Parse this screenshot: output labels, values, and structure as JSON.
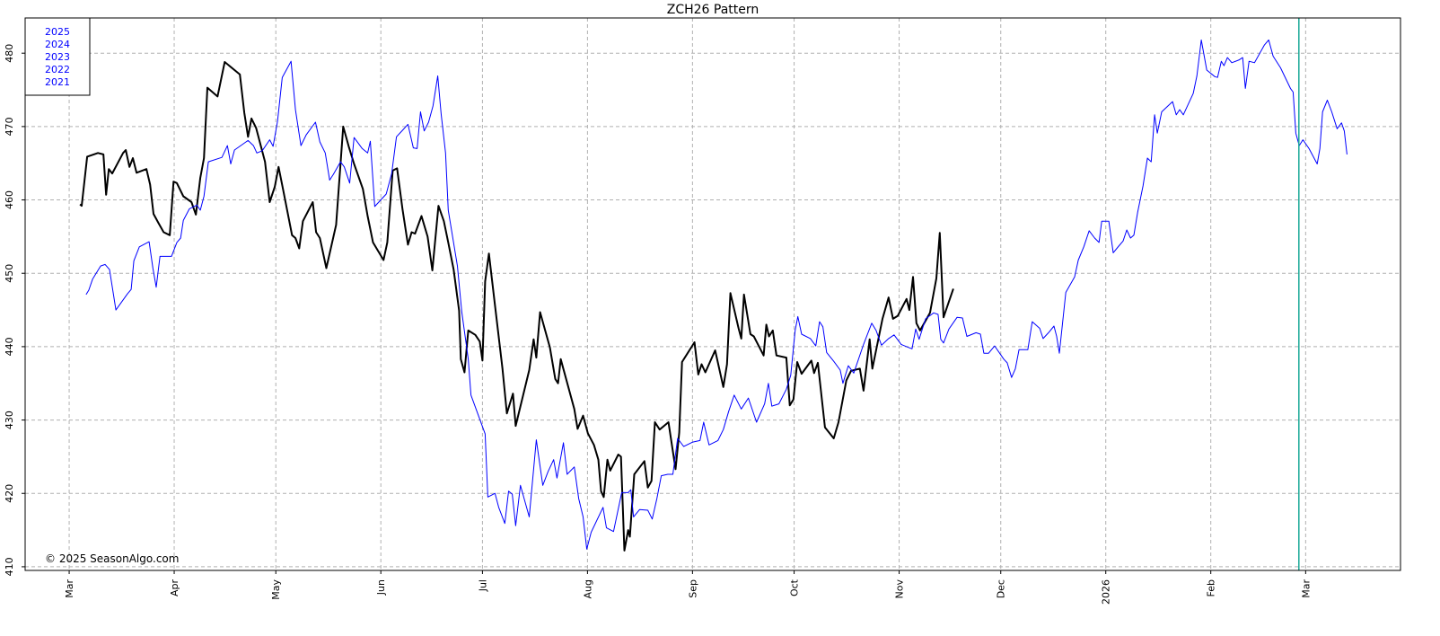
{
  "chart_data": {
    "type": "line",
    "title": "ZCH26  Pattern",
    "annotation": "© 2025 SeasonAlgo.com",
    "legend": {
      "entries": [
        "2025",
        "2024",
        "2023",
        "2022",
        "2021"
      ],
      "color": "#0000ff",
      "position": "upper-left"
    },
    "grid": true,
    "xlim": [
      -13,
      393
    ],
    "ylim": [
      409.5,
      484.8
    ],
    "xticks": [
      {
        "value": 0,
        "label": "Mar"
      },
      {
        "value": 31,
        "label": "Apr"
      },
      {
        "value": 61,
        "label": "May"
      },
      {
        "value": 92,
        "label": "Jun"
      },
      {
        "value": 122,
        "label": "Jul"
      },
      {
        "value": 153,
        "label": "Aug"
      },
      {
        "value": 184,
        "label": "Sep"
      },
      {
        "value": 214,
        "label": "Oct"
      },
      {
        "value": 245,
        "label": "Nov"
      },
      {
        "value": 275,
        "label": "Dec"
      },
      {
        "value": 306,
        "label": "2026"
      },
      {
        "value": 337,
        "label": "Feb"
      },
      {
        "value": 365,
        "label": "Mar"
      }
    ],
    "yticks": [
      410,
      420,
      430,
      440,
      450,
      460,
      470,
      480
    ],
    "vline": {
      "x": 363,
      "color": "#1aa898"
    },
    "series": [
      {
        "color": "#000000",
        "width": 2,
        "x": [
          3.2,
          3.7,
          5.3,
          8.5,
          10.1,
          10.9,
          11.7,
          12.7,
          15.9,
          16.7,
          17.8,
          18.8,
          19.9,
          22.8,
          23.9,
          24.9,
          26.3,
          27.9,
          29.7,
          30.8,
          31.8,
          33.7,
          36.1,
          37.4,
          38.7,
          39.8,
          40.8,
          43.8,
          45.9,
          50.4,
          51.7,
          52.8,
          53.8,
          55.2,
          57.8,
          59.2,
          60.7,
          61.8,
          63.1,
          65.8,
          66.8,
          67.9,
          69.0,
          71.9,
          72.9,
          74.0,
          75.9,
          78.8,
          80.9,
          82.5,
          84.1,
          86.7,
          88.1,
          89.7,
          92.8,
          93.9,
          95.5,
          96.8,
          98.4,
          100.0,
          101.1,
          102.1,
          104.0,
          105.8,
          107.2,
          109.0,
          110.6,
          111.9,
          113.5,
          115.1,
          115.6,
          116.7,
          117.8,
          119.9,
          121.2,
          122.0,
          122.8,
          123.9,
          125.7,
          127.9,
          129.2,
          131.0,
          131.8,
          135.8,
          137.1,
          137.9,
          139.0,
          141.9,
          143.5,
          144.3,
          145.1,
          149.1,
          150.1,
          151.7,
          153.1,
          154.9,
          156.2,
          157.0,
          157.8,
          158.9,
          159.7,
          162.1,
          162.9,
          163.9,
          165.0,
          165.5,
          166.8,
          169.8,
          170.8,
          171.9,
          172.9,
          174.3,
          176.9,
          179.0,
          180.1,
          180.9,
          184.6,
          185.7,
          186.7,
          187.8,
          190.7,
          193.1,
          194.2,
          195.2,
          197.6,
          198.4,
          199.2,
          201.1,
          202.1,
          205.0,
          205.8,
          206.6,
          207.7,
          208.8,
          211.7,
          212.7,
          213.8,
          214.9,
          216.2,
          219.1,
          219.9,
          221.0,
          223.1,
          225.7,
          227.1,
          229.4,
          230.8,
          233.4,
          234.5,
          236.3,
          237.1,
          240.1,
          241.9,
          243.2,
          244.6,
          247.2,
          248.0,
          249.1,
          250.1,
          251.2,
          254.1,
          256.0,
          257.0,
          258.1,
          261.0
        ],
        "values": [
          459.4,
          459.2,
          465.9,
          466.4,
          466.2,
          460.7,
          464.2,
          463.6,
          466.4,
          466.8,
          464.5,
          465.7,
          463.7,
          464.2,
          462.1,
          458.1,
          456.9,
          455.6,
          455.2,
          462.5,
          462.3,
          460.5,
          459.7,
          458.0,
          463.0,
          465.7,
          475.3,
          474.1,
          478.8,
          477.1,
          471.9,
          468.6,
          471.1,
          469.8,
          465.2,
          459.7,
          461.8,
          464.5,
          461.5,
          455.2,
          454.8,
          453.4,
          457.1,
          459.7,
          455.6,
          454.8,
          450.7,
          456.6,
          470.0,
          467.3,
          464.9,
          461.5,
          457.8,
          454.2,
          451.8,
          454.2,
          464.0,
          464.3,
          458.7,
          453.9,
          455.6,
          455.4,
          457.8,
          455.0,
          450.4,
          459.2,
          457.1,
          454.2,
          450.5,
          444.9,
          438.3,
          436.5,
          442.2,
          441.6,
          440.7,
          438.1,
          448.9,
          452.7,
          445.6,
          437.0,
          430.9,
          433.6,
          429.2,
          436.8,
          441.0,
          438.5,
          444.7,
          439.9,
          435.6,
          435.0,
          438.3,
          431.5,
          428.8,
          430.6,
          428.2,
          426.6,
          424.6,
          420.3,
          419.5,
          424.6,
          423.1,
          425.3,
          425.0,
          412.2,
          415.0,
          414.1,
          422.6,
          424.4,
          420.8,
          421.7,
          429.7,
          428.7,
          429.7,
          423.3,
          428.3,
          437.9,
          440.6,
          436.2,
          437.6,
          436.5,
          439.5,
          434.5,
          437.6,
          447.3,
          442.5,
          441.1,
          447.1,
          441.7,
          441.4,
          438.8,
          443.0,
          441.4,
          442.2,
          438.8,
          438.5,
          432.0,
          432.8,
          437.9,
          436.3,
          438.1,
          436.4,
          437.8,
          429.0,
          427.5,
          429.7,
          435.4,
          436.7,
          437.0,
          434.0,
          441.0,
          437.0,
          443.8,
          446.7,
          443.8,
          444.2,
          446.5,
          445.0,
          449.5,
          443.2,
          442.2,
          444.6,
          449.3,
          455.5,
          444.0,
          447.9
        ]
      },
      {
        "color": "#0000ff",
        "width": 1,
        "x": [
          5.0,
          5.8,
          6.9,
          9.3,
          10.6,
          11.9,
          13.8,
          17.2,
          18.3,
          19.1,
          20.7,
          23.6,
          24.7,
          25.7,
          26.8,
          30.2,
          31.8,
          32.9,
          33.7,
          35.5,
          37.7,
          38.7,
          39.8,
          41.1,
          45.1,
          46.7,
          47.7,
          48.8,
          52.8,
          54.4,
          55.4,
          57.0,
          59.2,
          60.2,
          61.5,
          62.9,
          65.5,
          66.8,
          68.4,
          70.0,
          72.7,
          74.0,
          75.6,
          76.9,
          78.0,
          80.1,
          81.2,
          82.8,
          84.1,
          86.5,
          88.1,
          88.9,
          90.2,
          93.6,
          95.2,
          96.6,
          98.4,
          100.0,
          101.6,
          102.7,
          103.7,
          104.8,
          106.1,
          107.4,
          108.8,
          109.8,
          111.1,
          111.9,
          114.6,
          115.9,
          117.8,
          118.6,
          122.8,
          123.6,
          125.7,
          126.8,
          128.6,
          129.7,
          130.8,
          131.8,
          133.2,
          135.8,
          137.9,
          139.8,
          141.4,
          143.0,
          144.0,
          145.9,
          147.0,
          149.1,
          150.4,
          151.7,
          152.8,
          154.1,
          157.6,
          158.6,
          160.7,
          163.1,
          165.0,
          165.8,
          166.6,
          168.4,
          170.8,
          172.1,
          173.5,
          174.8,
          176.7,
          178.2,
          179.6,
          181.4,
          184.1,
          186.2,
          187.3,
          188.9,
          191.5,
          193.1,
          194.7,
          196.3,
          198.4,
          200.5,
          202.9,
          205.3,
          206.4,
          207.4,
          209.5,
          211.7,
          213.0,
          214.3,
          215.1,
          216.2,
          218.8,
          220.4,
          221.5,
          222.5,
          223.6,
          225.7,
          227.6,
          228.4,
          230.0,
          231.6,
          234.5,
          236.9,
          238.2,
          239.8,
          241.9,
          243.5,
          245.6,
          247.7,
          248.8,
          249.9,
          250.9,
          252.8,
          255.2,
          256.5,
          257.3,
          258.1,
          259.7,
          262.1,
          263.7,
          265.0,
          267.7,
          269.0,
          270.0,
          271.4,
          273.2,
          275.9,
          276.9,
          278.2,
          279.3,
          280.4,
          283.0,
          284.3,
          286.5,
          287.5,
          289.1,
          290.7,
          291.5,
          292.3,
          294.2,
          296.8,
          297.9,
          299.5,
          301.1,
          302.7,
          304.0,
          304.8,
          306.9,
          308.2,
          309.8,
          311.1,
          312.2,
          313.3,
          314.3,
          315.4,
          317.0,
          318.3,
          319.4,
          320.4,
          321.2,
          322.5,
          325.7,
          326.8,
          327.8,
          328.9,
          331.8,
          332.9,
          334.2,
          335.8,
          338.2,
          339.0,
          340.1,
          340.9,
          341.9,
          343.2,
          345.4,
          346.4,
          347.2,
          348.3,
          349.9,
          352.8,
          354.1,
          355.4,
          357.6,
          360.5,
          361.3,
          362.1,
          363.1,
          364.2,
          366.0,
          368.4,
          369.2,
          370.0,
          371.4,
          372.7,
          374.3,
          375.6,
          376.4,
          377.2
        ],
        "values": [
          447.1,
          447.7,
          449.2,
          451.0,
          451.2,
          450.5,
          445.0,
          447.2,
          447.8,
          451.7,
          453.6,
          454.3,
          450.7,
          448.1,
          452.3,
          452.3,
          454.2,
          454.8,
          457.2,
          458.8,
          459.3,
          458.6,
          460.5,
          465.2,
          465.8,
          467.4,
          464.9,
          466.8,
          468.1,
          467.4,
          466.4,
          466.7,
          468.2,
          467.3,
          470.7,
          476.7,
          478.9,
          472.3,
          467.4,
          468.9,
          470.6,
          467.9,
          466.4,
          462.7,
          463.5,
          465.2,
          464.5,
          462.3,
          468.5,
          467.0,
          466.4,
          468.0,
          459.1,
          460.8,
          463.6,
          468.6,
          469.5,
          470.3,
          467.1,
          467.0,
          472.0,
          469.4,
          470.6,
          472.8,
          476.9,
          471.7,
          466.4,
          458.6,
          451.0,
          444.7,
          438.3,
          433.4,
          428.1,
          419.5,
          420.0,
          418.1,
          415.9,
          420.3,
          419.9,
          415.6,
          421.1,
          416.8,
          427.3,
          421.1,
          423.0,
          424.6,
          422.1,
          426.9,
          422.6,
          423.6,
          419.3,
          416.8,
          412.4,
          414.7,
          418.1,
          415.3,
          414.8,
          420.1,
          420.1,
          420.5,
          416.8,
          417.8,
          417.7,
          416.5,
          419.3,
          422.4,
          422.6,
          422.6,
          427.5,
          426.4,
          427.0,
          427.2,
          429.7,
          426.6,
          427.2,
          428.7,
          431.2,
          433.4,
          431.5,
          433.0,
          429.7,
          432.2,
          435.0,
          431.9,
          432.2,
          434.2,
          436.1,
          442.2,
          444.1,
          441.7,
          441.1,
          440.1,
          443.4,
          442.7,
          439.2,
          438.0,
          436.8,
          435.0,
          437.4,
          436.4,
          440.3,
          443.2,
          442.2,
          440.2,
          441.1,
          441.6,
          440.3,
          439.9,
          439.7,
          442.4,
          441.0,
          443.8,
          444.6,
          444.4,
          441.0,
          440.5,
          442.4,
          444.0,
          443.9,
          441.4,
          441.9,
          441.7,
          439.1,
          439.1,
          440.1,
          438.3,
          437.8,
          435.8,
          437.0,
          439.6,
          439.6,
          443.4,
          442.5,
          441.1,
          441.9,
          442.8,
          441.4,
          439.1,
          447.4,
          449.5,
          451.8,
          453.6,
          455.8,
          454.8,
          454.2,
          457.1,
          457.1,
          452.8,
          453.7,
          454.4,
          455.9,
          454.8,
          455.2,
          458.3,
          461.9,
          465.7,
          465.2,
          471.6,
          469.1,
          472.0,
          473.4,
          471.6,
          472.3,
          471.6,
          474.5,
          476.9,
          481.8,
          477.7,
          476.8,
          476.7,
          478.9,
          478.3,
          479.4,
          478.7,
          479.1,
          479.4,
          475.2,
          478.9,
          478.7,
          481.1,
          481.8,
          479.6,
          478.0,
          475.2,
          474.7,
          469.1,
          467.4,
          468.2,
          467.0,
          464.9,
          467.0,
          472.0,
          473.6,
          472.0,
          469.7,
          470.5,
          469.4,
          466.2
        ]
      }
    ]
  }
}
